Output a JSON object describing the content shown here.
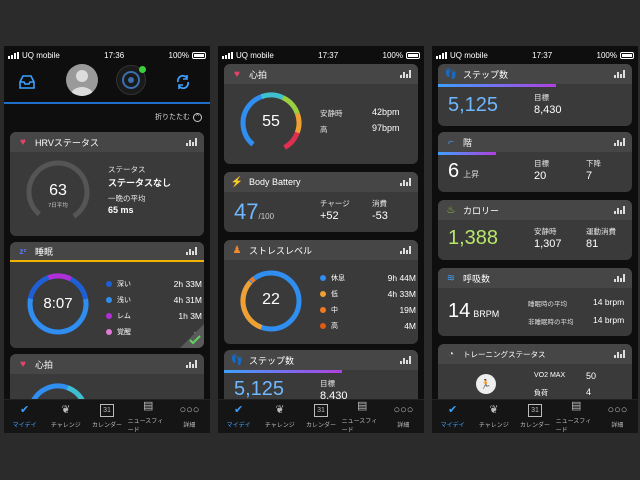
{
  "status": {
    "p1": {
      "carrier": "UQ mobile",
      "time": "17:36",
      "battery": "100%"
    },
    "p2": {
      "carrier": "UQ mobile",
      "time": "17:37",
      "battery": "100%"
    },
    "p3": {
      "carrier": "UQ mobile",
      "time": "17:37",
      "battery": "100%"
    }
  },
  "p1": {
    "collapse_label": "折りたたむ",
    "hrv": {
      "title": "HRVステータス",
      "value": "63",
      "sub": "7日平均",
      "status_label": "ステータス",
      "status_value": "ステータスなし",
      "night_label": "一晩の平均",
      "night_value": "65 ms"
    },
    "sleep": {
      "title": "睡眠",
      "value": "8:07",
      "accent": "#f0b400",
      "rows": [
        {
          "label": "深い",
          "value": "2h 33M",
          "color": "#1f5fd6"
        },
        {
          "label": "浅い",
          "value": "4h 31M",
          "color": "#2f8ef0"
        },
        {
          "label": "レム",
          "value": "1h 3M",
          "color": "#b02fd6"
        },
        {
          "label": "覚醒",
          "value": "- -",
          "color": "#e07bd8"
        }
      ]
    },
    "hr_title": "心拍"
  },
  "p2": {
    "hr": {
      "title": "心拍",
      "value": "55",
      "rest_label": "安静時",
      "rest_value": "42bpm",
      "high_label": "高",
      "high_value": "97bpm"
    },
    "bb": {
      "title": "Body Battery",
      "value": "47",
      "max": "/100",
      "charge_label": "チャージ",
      "charge_value": "+52",
      "drain_label": "消費",
      "drain_value": "-53"
    },
    "stress": {
      "title": "ストレスレベル",
      "value": "22",
      "rows": [
        {
          "label": "休息",
          "value": "9h 44M",
          "color": "#2f8ef0"
        },
        {
          "label": "低",
          "value": "4h 33M",
          "color": "#f0a030"
        },
        {
          "label": "中",
          "value": "19M",
          "color": "#f07a20"
        },
        {
          "label": "高",
          "value": "4M",
          "color": "#e05a10"
        }
      ]
    },
    "steps": {
      "title": "ステップ数",
      "value": "5,125",
      "goal_label": "目標",
      "goal_value": "8,430"
    }
  },
  "p3": {
    "steps": {
      "title": "ステップ数",
      "value": "5,125",
      "goal_label": "目標",
      "goal_value": "8,430",
      "progress": 0.61
    },
    "floors": {
      "title": "階",
      "value": "6",
      "unit": "上昇",
      "goal_label": "目標",
      "goal_value": "20",
      "down_label": "下降",
      "down_value": "7",
      "progress": 0.3
    },
    "cal": {
      "title": "カロリー",
      "value": "1,388",
      "rest_label": "安静時",
      "rest_value": "1,307",
      "active_label": "運動消費",
      "active_value": "81"
    },
    "resp": {
      "title": "呼吸数",
      "value": "14",
      "unit": "BRPM",
      "sleep_label": "睡眠時の平均",
      "sleep_value": "14 brpm",
      "awake_label": "非睡眠時の平均",
      "awake_value": "14 brpm"
    },
    "training": {
      "title": "トレーニングステータス",
      "vo2_label": "VO2 MAX",
      "vo2_value": "50",
      "load_label": "負荷",
      "load_value": "4"
    }
  },
  "tabs": [
    "マイデイ",
    "チャレンジ",
    "カレンダー",
    "ニュースフィード",
    "詳細"
  ],
  "colors": {
    "accent": "#3da0ff",
    "card": "#3a3a3a",
    "bg": "#0e0e0e"
  }
}
